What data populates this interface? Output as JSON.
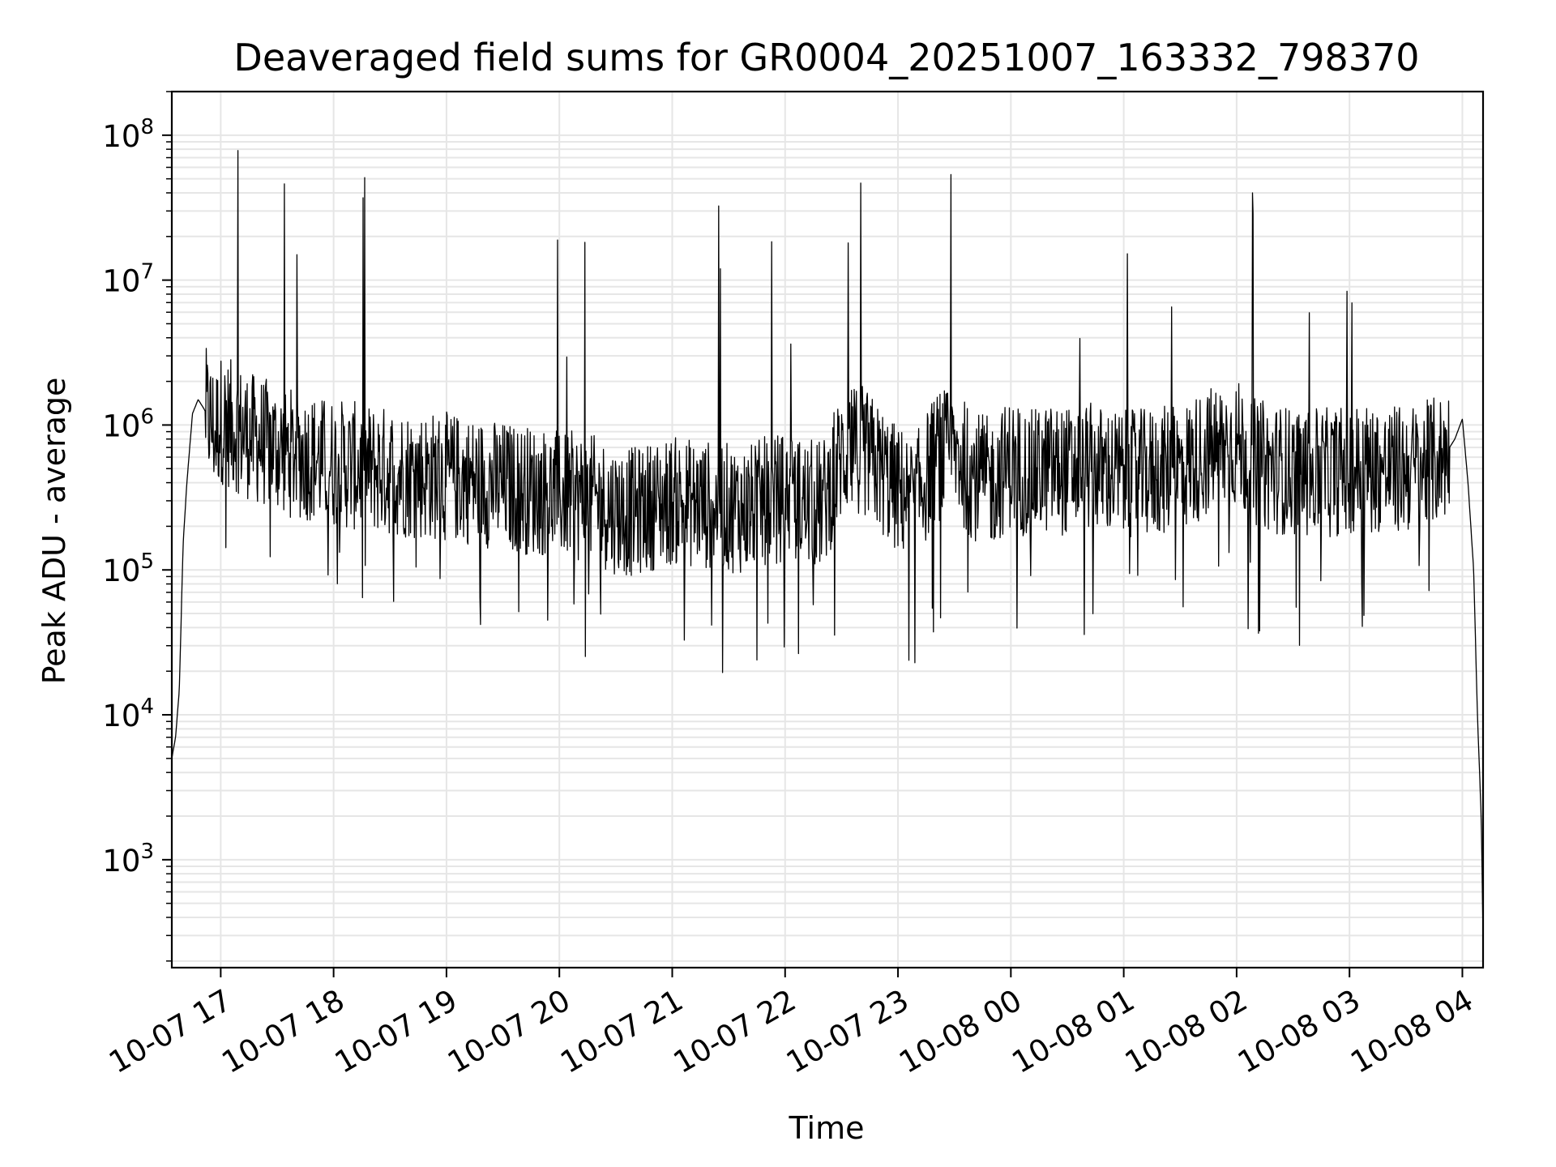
{
  "chart_data": {
    "type": "line",
    "title": "Deaveraged field sums for GR0004_20251007_163332_798370",
    "xlabel": "Time",
    "ylabel": "Peak ADU - average",
    "yscale": "log",
    "ylim": [
      180,
      200000000
    ],
    "xlim": [
      "2025-10-07 16:34",
      "2025-10-08 04:11"
    ],
    "grid": true,
    "line_color": "#000000",
    "x_ticks": [
      {
        "t": "2025-10-07 17:00",
        "label": "10-07 17"
      },
      {
        "t": "2025-10-07 18:00",
        "label": "10-07 18"
      },
      {
        "t": "2025-10-07 19:00",
        "label": "10-07 19"
      },
      {
        "t": "2025-10-07 20:00",
        "label": "10-07 20"
      },
      {
        "t": "2025-10-07 21:00",
        "label": "10-07 21"
      },
      {
        "t": "2025-10-07 22:00",
        "label": "10-07 22"
      },
      {
        "t": "2025-10-07 23:00",
        "label": "10-07 23"
      },
      {
        "t": "2025-10-08 00:00",
        "label": "10-08 00"
      },
      {
        "t": "2025-10-08 01:00",
        "label": "10-08 01"
      },
      {
        "t": "2025-10-08 02:00",
        "label": "10-08 02"
      },
      {
        "t": "2025-10-08 03:00",
        "label": "10-08 03"
      },
      {
        "t": "2025-10-08 04:00",
        "label": "10-08 04"
      }
    ],
    "y_ticks": [
      {
        "v": 1000,
        "base": "10",
        "exp": "3"
      },
      {
        "v": 10000,
        "base": "10",
        "exp": "4"
      },
      {
        "v": 100000,
        "base": "10",
        "exp": "5"
      },
      {
        "v": 1000000,
        "base": "10",
        "exp": "6"
      },
      {
        "v": 10000000,
        "base": "10",
        "exp": "7"
      },
      {
        "v": 100000000,
        "base": "10",
        "exp": "8"
      }
    ],
    "series": [
      {
        "x": [
          "2025-10-07 16:34",
          "2025-10-07 16:36",
          "2025-10-07 16:38",
          "2025-10-07 16:40",
          "2025-10-07 16:42",
          "2025-10-07 16:45",
          "2025-10-07 16:48",
          "2025-10-07 16:51",
          "2025-10-07 16:54",
          "2025-10-07 16:57",
          "2025-10-07 17:00",
          "2025-10-07 17:06",
          "2025-10-07 17:12",
          "2025-10-07 17:18",
          "2025-10-07 17:24",
          "2025-10-07 17:30",
          "2025-10-07 17:36",
          "2025-10-07 17:42",
          "2025-10-07 17:48",
          "2025-10-07 17:54",
          "2025-10-07 18:00",
          "2025-10-07 18:10",
          "2025-10-07 18:20",
          "2025-10-07 18:30",
          "2025-10-07 18:40",
          "2025-10-07 18:50",
          "2025-10-07 19:00",
          "2025-10-07 19:10",
          "2025-10-07 19:20",
          "2025-10-07 19:30",
          "2025-10-07 19:40",
          "2025-10-07 19:50",
          "2025-10-07 20:00",
          "2025-10-07 20:10",
          "2025-10-07 20:20",
          "2025-10-07 20:30",
          "2025-10-07 20:40",
          "2025-10-07 20:50",
          "2025-10-07 21:00",
          "2025-10-07 21:10",
          "2025-10-07 21:20",
          "2025-10-07 21:30",
          "2025-10-07 21:40",
          "2025-10-07 21:50",
          "2025-10-07 22:00",
          "2025-10-07 22:10",
          "2025-10-07 22:20",
          "2025-10-07 22:30",
          "2025-10-07 22:40",
          "2025-10-07 22:50",
          "2025-10-07 23:00",
          "2025-10-07 23:10",
          "2025-10-07 23:20",
          "2025-10-07 23:30",
          "2025-10-07 23:40",
          "2025-10-07 23:50",
          "2025-10-08 00:00",
          "2025-10-08 00:10",
          "2025-10-08 00:20",
          "2025-10-08 00:30",
          "2025-10-08 00:40",
          "2025-10-08 00:50",
          "2025-10-08 01:00",
          "2025-10-08 01:10",
          "2025-10-08 01:20",
          "2025-10-08 01:30",
          "2025-10-08 01:40",
          "2025-10-08 01:50",
          "2025-10-08 02:00",
          "2025-10-08 02:10",
          "2025-10-08 02:20",
          "2025-10-08 02:30",
          "2025-10-08 02:40",
          "2025-10-08 02:50",
          "2025-10-08 03:00",
          "2025-10-08 03:10",
          "2025-10-08 03:20",
          "2025-10-08 03:30",
          "2025-10-08 03:40",
          "2025-10-08 03:50",
          "2025-10-08 03:56",
          "2025-10-08 04:00",
          "2025-10-08 04:03",
          "2025-10-08 04:06",
          "2025-10-08 04:08",
          "2025-10-08 04:10",
          "2025-10-08 04:11"
        ],
        "y": [
          5000,
          7000,
          15000,
          150000,
          400000,
          1200000,
          1500000,
          1300000,
          1100000,
          900000,
          1100000,
          1000000,
          900000,
          800000,
          750000,
          700000,
          650000,
          620000,
          600000,
          560000,
          550000,
          520000,
          500000,
          480000,
          460000,
          450000,
          440000,
          420000,
          400000,
          380000,
          360000,
          350000,
          330000,
          320000,
          300000,
          260000,
          250000,
          280000,
          300000,
          290000,
          280000,
          270000,
          260000,
          300000,
          320000,
          290000,
          280000,
          600000,
          700000,
          500000,
          350000,
          320000,
          600000,
          650000,
          450000,
          400000,
          550000,
          450000,
          500000,
          480000,
          520000,
          480000,
          450000,
          460000,
          480000,
          500000,
          600000,
          700000,
          750000,
          550000,
          500000,
          480000,
          460000,
          470000,
          500000,
          520000,
          480000,
          500000,
          520000,
          600000,
          800000,
          1100000,
          400000,
          100000,
          10000,
          2000,
          300
        ]
      }
    ]
  }
}
